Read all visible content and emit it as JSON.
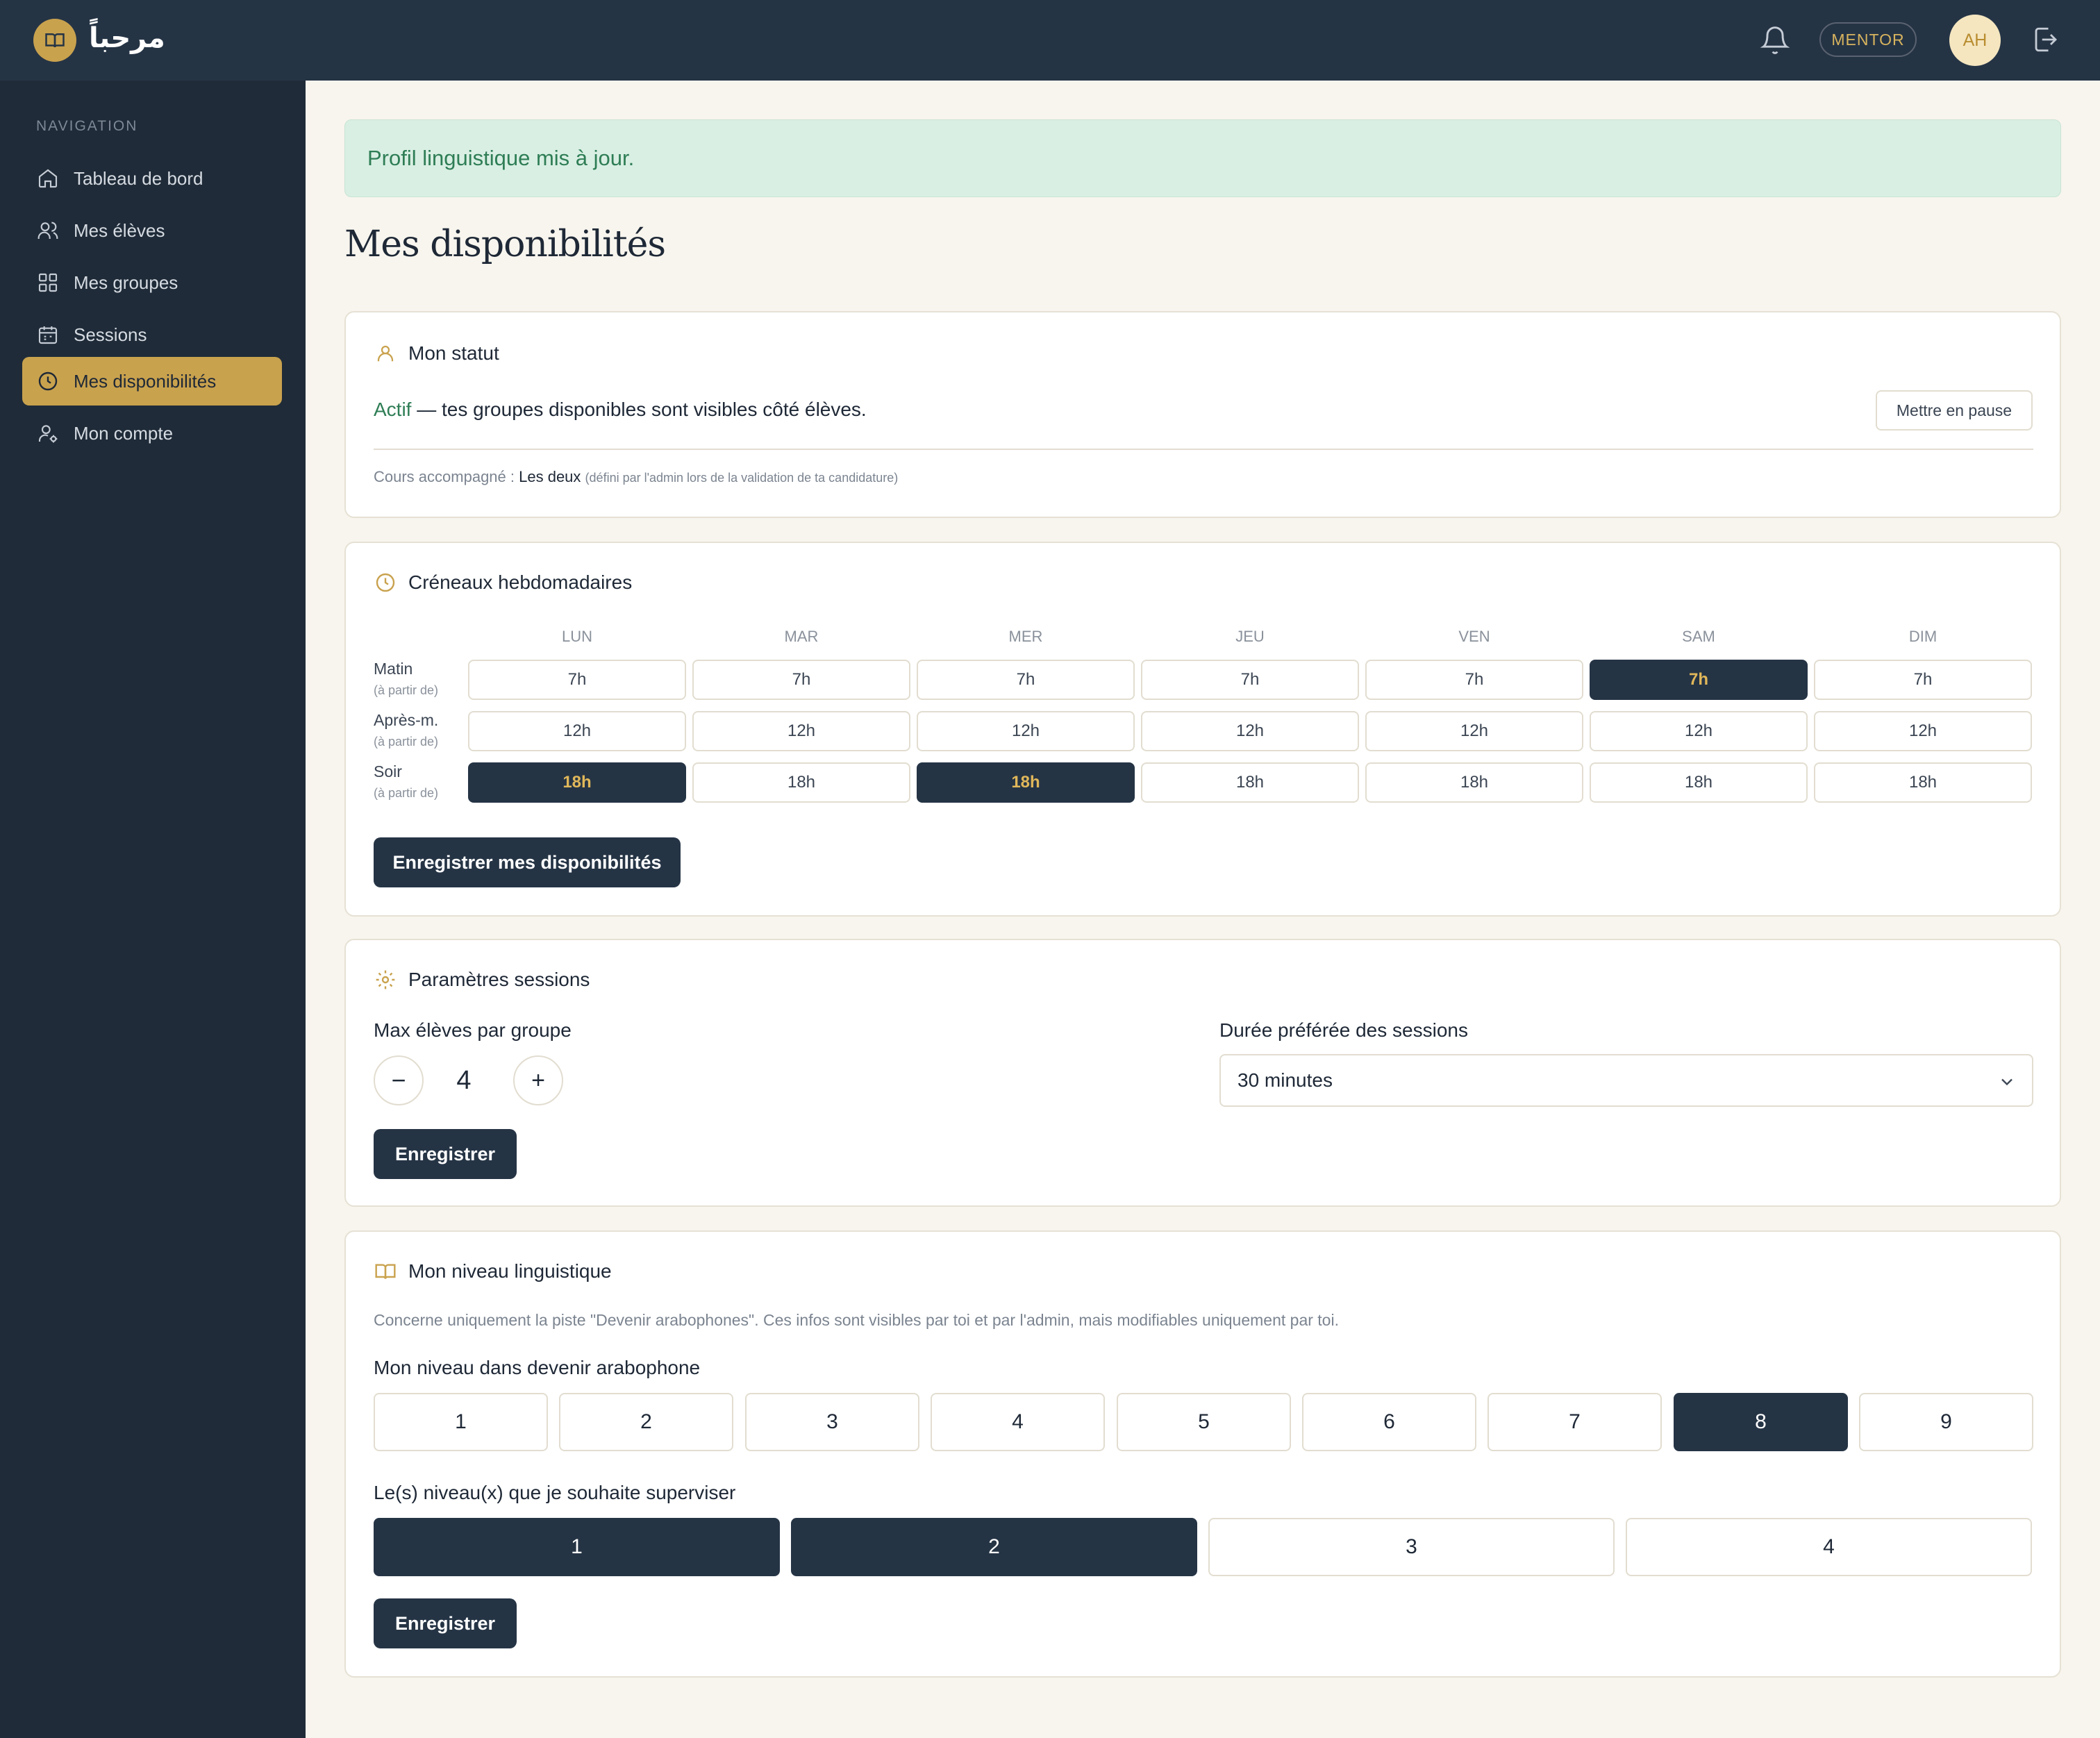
{
  "app": {
    "brand": "مرحباً",
    "logo_icon": "book-icon"
  },
  "topbar": {
    "role": "MENTOR",
    "avatar_initials": "AH",
    "bell_icon": "bell-icon",
    "logout_icon": "logout-icon"
  },
  "sidebar": {
    "heading": "NAVIGATION",
    "items": [
      {
        "label": "Tableau de bord",
        "icon": "home-icon"
      },
      {
        "label": "Mes élèves",
        "icon": "users-icon"
      },
      {
        "label": "Mes groupes",
        "icon": "grid-icon"
      },
      {
        "label": "Sessions",
        "icon": "calendar-icon"
      },
      {
        "label": "Mes disponibilités",
        "icon": "clock-icon",
        "active": true
      },
      {
        "label": "Mon compte",
        "icon": "user-settings-icon"
      }
    ]
  },
  "alert": "Profil linguistique mis à jour.",
  "page_title": "Mes disponibilités",
  "status": {
    "title": "Mon statut",
    "state": "Actif",
    "description": " — tes groupes disponibles sont visibles côté élèves.",
    "pause_button": "Mettre en pause",
    "course_label": "Cours accompagné :",
    "course_value": "Les deux",
    "course_note": "(défini par l'admin lors de la validation de ta candidature)"
  },
  "weekly": {
    "title": "Créneaux hebdomadaires",
    "days": [
      "LUN",
      "MAR",
      "MER",
      "JEU",
      "VEN",
      "SAM",
      "DIM"
    ],
    "rows": [
      {
        "label": "Matin",
        "sub": "(à partir de)",
        "time": "7h",
        "selected": [
          false,
          false,
          false,
          false,
          false,
          true,
          false
        ]
      },
      {
        "label": "Après-m.",
        "sub": "(à partir de)",
        "time": "12h",
        "selected": [
          false,
          false,
          false,
          false,
          false,
          false,
          false
        ]
      },
      {
        "label": "Soir",
        "sub": "(à partir de)",
        "time": "18h",
        "selected": [
          true,
          false,
          true,
          false,
          false,
          false,
          false
        ]
      }
    ],
    "save_button": "Enregistrer mes disponibilités"
  },
  "session_params": {
    "title": "Paramètres sessions",
    "max_label": "Max élèves par groupe",
    "max_value": "4",
    "minus": "−",
    "plus": "+",
    "duration_label": "Durée préférée des sessions",
    "duration_value": "30 minutes",
    "save_button": "Enregistrer"
  },
  "language": {
    "title": "Mon niveau linguistique",
    "note": "Concerne uniquement la piste \"Devenir arabophones\". Ces infos sont visibles par toi et par l'admin, mais modifiables uniquement par toi.",
    "level_label": "Mon niveau dans devenir arabophone",
    "levels": [
      "1",
      "2",
      "3",
      "4",
      "5",
      "6",
      "7",
      "8",
      "9"
    ],
    "level_selected": "8",
    "supervise_label": "Le(s) niveau(x) que je souhaite superviser",
    "supervise_levels": [
      "1",
      "2",
      "3",
      "4"
    ],
    "supervise_selected": [
      "1",
      "2"
    ],
    "save_button": "Enregistrer"
  },
  "colors": {
    "navy": "#253445",
    "gold": "#c9a24e",
    "success_bg": "#d9efe3",
    "success_text": "#2e7d55"
  }
}
